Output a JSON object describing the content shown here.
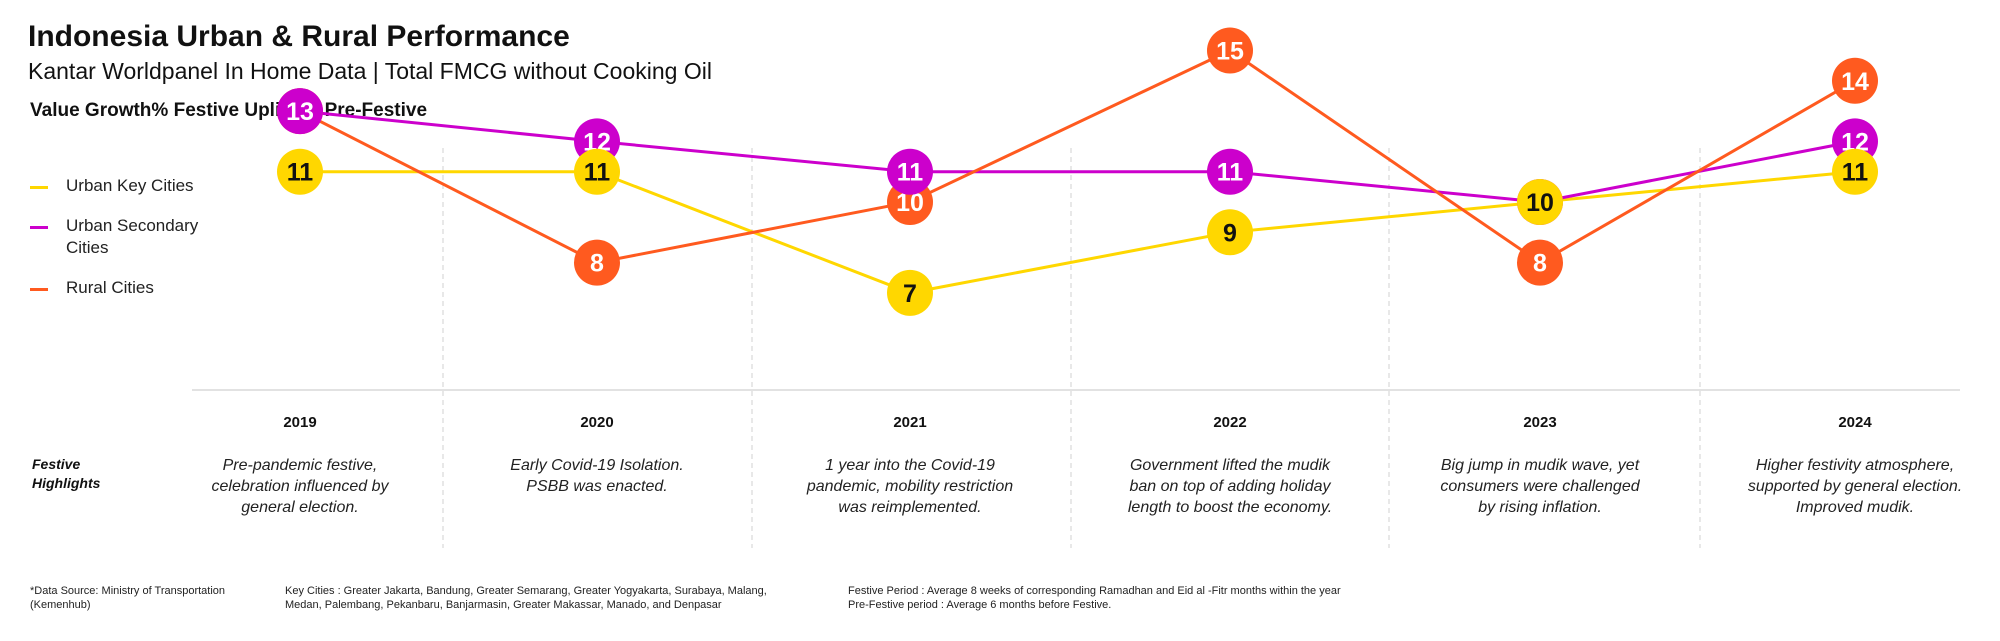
{
  "header": {
    "title": "Indonesia Urban & Rural Performance",
    "subtitle": "Kantar Worldpanel In Home Data | Total FMCG without Cooking Oil",
    "section_title": "Value Growth% Festive Uplift vs Pre-Festive"
  },
  "legend": [
    {
      "label": "Urban Key Cities",
      "color": "#FFD700"
    },
    {
      "label": "Urban Secondary Cities",
      "color": "#CC00CC"
    },
    {
      "label": "Rural Cities",
      "color": "#FF5A1F"
    }
  ],
  "chart_data": {
    "type": "line",
    "categories": [
      "2019",
      "2020",
      "2021",
      "2022",
      "2023",
      "2024"
    ],
    "series": [
      {
        "name": "Urban Key Cities",
        "color": "#FFD700",
        "label_color": "#111111",
        "values": [
          11,
          11,
          7,
          9,
          10,
          11
        ]
      },
      {
        "name": "Urban Secondary Cities",
        "color": "#CC00CC",
        "label_color": "#ffffff",
        "values": [
          13,
          12,
          11,
          11,
          10,
          12
        ]
      },
      {
        "name": "Rural Cities",
        "color": "#FF5A1F",
        "label_color": "#ffffff",
        "values": [
          13,
          8,
          10,
          15,
          8,
          14
        ]
      }
    ],
    "data_labels": true,
    "grid": false,
    "legend_position": "left"
  },
  "highlights": {
    "label": "Festive\nHighlights",
    "items": [
      "Pre-pandemic festive, celebration influenced by general election.",
      "Early Covid-19 Isolation. PSBB was enacted.",
      "1 year into the Covid-19 pandemic, mobility restriction was reimplemented.",
      "Government lifted the mudik ban on top of adding holiday length to boost the economy.",
      "Big jump in mudik wave, yet consumers were challenged by rising inflation.",
      "Higher festivity atmosphere, supported by general election. Improved mudik."
    ]
  },
  "footnotes": {
    "source": "*Data Source: Ministry of  Transportation\n(Kemenhub)",
    "key_cities": "Key Cities : Greater Jakarta, Bandung, Greater Semarang, Greater Yogyakarta, Surabaya, Malang,\nMedan, Palembang, Pekanbaru, Banjarmasin, Greater Makassar, Manado, and Denpasar",
    "periods": "Festive Period : Average 8 weeks of corresponding Ramadhan and Eid al -Fitr months within the year\nPre-Festive period : Average 6 months before Festive."
  }
}
